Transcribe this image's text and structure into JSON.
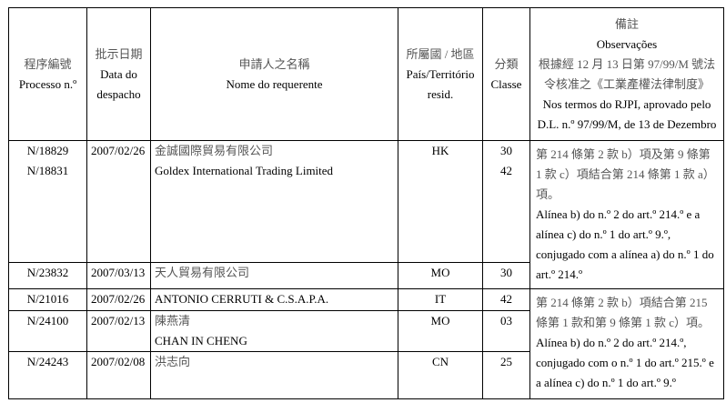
{
  "headers": {
    "processo": {
      "zh": "程序編號",
      "pt": "Processo n.º"
    },
    "data": {
      "zh": "批示日期",
      "pt1": "Data do",
      "pt2": "despacho"
    },
    "nome": {
      "zh": "申請人之名稱",
      "pt": "Nome do requerente"
    },
    "pais": {
      "zh": "所屬國 / 地區",
      "pt1": "País/Território",
      "pt2": "resid."
    },
    "classe": {
      "zh": "分類",
      "pt": "Classe"
    },
    "obs": {
      "zh": "備註",
      "pt": "Observações",
      "zh2a": "根據經 12 月 13 日第 97/99/M 號法",
      "zh2b": "令核准之《工業產權法律制度》",
      "pt2a": "Nos termos do RJPI, aprovado pelo",
      "pt2b": "D.L. n.º 97/99/M, de 13 de Dezembro"
    }
  },
  "rows": [
    {
      "processo": [
        "N/18829",
        "N/18831"
      ],
      "data": "2007/02/26",
      "nome_zh": "金誠國際貿易有限公司",
      "nome": "Goldex International Trading Limited",
      "pais": "HK",
      "classe": [
        "30",
        "42"
      ]
    },
    {
      "processo": [
        "N/23832"
      ],
      "data": "2007/03/13",
      "nome_zh": "天人貿易有限公司",
      "pais": "MO",
      "classe": [
        "30"
      ]
    },
    {
      "processo": [
        "N/21016"
      ],
      "data": "2007/02/26",
      "nome": "ANTONIO CERRUTI & C.S.A.P.A.",
      "pais": "IT",
      "classe": [
        "42"
      ]
    },
    {
      "processo": [
        "N/24100"
      ],
      "data": "2007/02/13",
      "nome_zh": "陳燕清",
      "nome": "CHAN IN CHENG",
      "pais": "MO",
      "classe": [
        "03"
      ]
    },
    {
      "processo": [
        "N/24243"
      ],
      "data": "2007/02/08",
      "nome_zh": "洪志向",
      "pais": "CN",
      "classe": [
        "25"
      ]
    }
  ],
  "observations": [
    {
      "zh": "第 214 條第 2 款 b）項及第 9 條第 1 款 c）項結合第 214 條第 1 款 a）項。",
      "pt": "Alínea b) do n.º 2 do art.º 214.º e a alínea c) do n.º 1 do art.º 9.º, conjugado com a alínea a) do n.º 1 do art.º 214.º"
    },
    {
      "zh": "第 214 條第 2 款 b）項結合第 215 條第 1 款和第 9 條第 1 款 c）項。",
      "pt": "Alínea b) do n.º 2 do art.º 214.º, conjugado com o n.º 1 do art.º 215.º e a alínea c) do n.º 1 do art.º 9.º"
    }
  ]
}
